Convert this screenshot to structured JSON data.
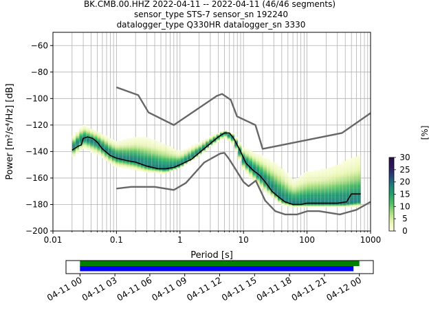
{
  "title_lines": [
    "BK.CMB.00.HHZ   2022-04-11 -- 2022-04-11  (46/46 segments)",
    "sensor_type STS-7 sensor_sn 192240",
    "datalogger_type Q330HR datalogger_sn 3330"
  ],
  "chart_data": [
    {
      "type": "heatmap",
      "title": "BK.CMB.00.HHZ   2022-04-11 -- 2022-04-11  (46/46 segments)",
      "xlabel": "Period [s]",
      "ylabel": "Power [m²/s⁴/Hz] [dB]",
      "xscale": "log",
      "xlim": [
        0.01,
        1000
      ],
      "ylim": [
        -200,
        -50
      ],
      "xticks": [
        0.01,
        0.1,
        1,
        10,
        100,
        1000
      ],
      "xtick_labels": [
        "0.01",
        "0.1",
        "1",
        "10",
        "100",
        "1000"
      ],
      "yticks": [
        -200,
        -180,
        -160,
        -140,
        -120,
        -100,
        -80,
        -60
      ],
      "ytick_labels": [
        "−200",
        "−180",
        "−160",
        "−140",
        "−120",
        "−100",
        "−80",
        "−60"
      ],
      "grid": true,
      "colorbar": {
        "label": "[%]",
        "range": [
          0,
          30
        ],
        "ticks": [
          0,
          5,
          10,
          15,
          20,
          25,
          30
        ],
        "tick_labels": [
          "0",
          "5",
          "10",
          "15",
          "20",
          "25",
          "30"
        ],
        "colormap": [
          "#ffffe5",
          "#e6f5b0",
          "#a8dd7d",
          "#52bf65",
          "#23a16b",
          "#1f7f7a",
          "#28457d",
          "#2c1a5a",
          "#2a0f4a"
        ]
      },
      "series": [
        {
          "name": "",
          "role": "mean",
          "color": "#000000",
          "points": [
            [
              0.02,
              -139
            ],
            [
              0.025,
              -136
            ],
            [
              0.028,
              -135
            ],
            [
              0.03,
              -130
            ],
            [
              0.035,
              -129
            ],
            [
              0.042,
              -130
            ],
            [
              0.05,
              -133
            ],
            [
              0.06,
              -138
            ],
            [
              0.08,
              -143
            ],
            [
              0.1,
              -145
            ],
            [
              0.15,
              -147
            ],
            [
              0.2,
              -148
            ],
            [
              0.3,
              -151
            ],
            [
              0.45,
              -153
            ],
            [
              0.6,
              -153
            ],
            [
              0.8,
              -152
            ],
            [
              1,
              -150
            ],
            [
              1.5,
              -146
            ],
            [
              2,
              -141
            ],
            [
              3,
              -134
            ],
            [
              4,
              -129
            ],
            [
              5,
              -126
            ],
            [
              6,
              -126
            ],
            [
              7,
              -130
            ],
            [
              9,
              -140
            ],
            [
              11,
              -149
            ],
            [
              14,
              -154
            ],
            [
              18,
              -158
            ],
            [
              22,
              -163
            ],
            [
              28,
              -170
            ],
            [
              35,
              -174
            ],
            [
              45,
              -178
            ],
            [
              60,
              -180
            ],
            [
              80,
              -180
            ],
            [
              100,
              -179
            ],
            [
              150,
              -179
            ],
            [
              200,
              -179
            ],
            [
              300,
              -179
            ],
            [
              420,
              -178
            ],
            [
              500,
              -172
            ],
            [
              700,
              -172
            ]
          ]
        },
        {
          "name": "",
          "role": "upper-model",
          "color": "#666666",
          "points": [
            [
              0.1,
              -91.5
            ],
            [
              0.22,
              -97.4
            ],
            [
              0.32,
              -110.5
            ],
            [
              0.8,
              -120
            ],
            [
              3.8,
              -98
            ],
            [
              4.6,
              -96.5
            ],
            [
              6.3,
              -101
            ],
            [
              7.9,
              -113.5
            ],
            [
              15.4,
              -120
            ],
            [
              20,
              -138
            ],
            [
              354.8,
              -126
            ],
            [
              1000,
              -111
            ]
          ]
        },
        {
          "name": "",
          "role": "lower-model",
          "color": "#666666",
          "points": [
            [
              0.1,
              -168
            ],
            [
              0.17,
              -166.7
            ],
            [
              0.4,
              -166.7
            ],
            [
              0.8,
              -169
            ],
            [
              1.24,
              -163.7
            ],
            [
              2.4,
              -148.3
            ],
            [
              4.3,
              -141.5
            ],
            [
              5,
              -141
            ],
            [
              6,
              -146
            ],
            [
              10,
              -163
            ],
            [
              12,
              -166.2
            ],
            [
              15.6,
              -162
            ],
            [
              21.9,
              -177
            ],
            [
              31.6,
              -185
            ],
            [
              45,
              -187.5
            ],
            [
              70,
              -187.5
            ],
            [
              101,
              -185
            ],
            [
              154,
              -185
            ],
            [
              328,
              -187.5
            ],
            [
              600,
              -184
            ],
            [
              1000,
              -178
            ]
          ]
        }
      ],
      "histogram_bands": [
        {
          "period": 0.02,
          "low": -148,
          "high": -128,
          "peak": -138
        },
        {
          "period": 0.03,
          "low": -140,
          "high": -118,
          "peak": -130
        },
        {
          "period": 0.05,
          "low": -145,
          "high": -123,
          "peak": -134
        },
        {
          "period": 0.08,
          "low": -152,
          "high": -128,
          "peak": -142
        },
        {
          "period": 0.1,
          "low": -154,
          "high": -130,
          "peak": -145
        },
        {
          "period": 0.2,
          "low": -156,
          "high": -125,
          "peak": -148
        },
        {
          "period": 0.3,
          "low": -158,
          "high": -125,
          "peak": -151
        },
        {
          "period": 0.6,
          "low": -158,
          "high": -130,
          "peak": -154
        },
        {
          "period": 1,
          "low": -154,
          "high": -138,
          "peak": -151
        },
        {
          "period": 2,
          "low": -145,
          "high": -132,
          "peak": -141
        },
        {
          "period": 3,
          "low": -138,
          "high": -128,
          "peak": -134
        },
        {
          "period": 5,
          "low": -131,
          "high": -124,
          "peak": -126
        },
        {
          "period": 7,
          "low": -137,
          "high": -126,
          "peak": -130
        },
        {
          "period": 10,
          "low": -156,
          "high": -135,
          "peak": -147
        },
        {
          "period": 20,
          "low": -172,
          "high": -140,
          "peak": -161
        },
        {
          "period": 40,
          "low": -182,
          "high": -146,
          "peak": -177
        },
        {
          "period": 60,
          "low": -183,
          "high": -158,
          "peak": -180
        },
        {
          "period": 100,
          "low": -183,
          "high": -150,
          "peak": -180
        },
        {
          "period": 200,
          "low": -183,
          "high": -147,
          "peak": -180
        },
        {
          "period": 400,
          "low": -183,
          "high": -140,
          "peak": -180
        },
        {
          "period": 700,
          "low": -183,
          "high": -135,
          "peak": -178
        }
      ]
    },
    {
      "type": "timeline",
      "xlabel": "",
      "tick_labels": [
        "04-11 00",
        "04-11 03",
        "04-11 06",
        "04-11 09",
        "04-11 12",
        "04-11 15",
        "04-11 18",
        "04-11 21",
        "04-12 00"
      ],
      "xlim_hours": [
        -1.2,
        25.2
      ],
      "tick_hours": [
        0,
        3,
        6,
        9,
        12,
        15,
        18,
        21,
        24
      ],
      "bars": [
        {
          "name": "",
          "color": "#008000",
          "start_hour": 0,
          "end_hour": 24
        },
        {
          "name": "",
          "color": "#0000ff",
          "start_hour": 0,
          "end_hour": 23.5
        }
      ]
    }
  ]
}
